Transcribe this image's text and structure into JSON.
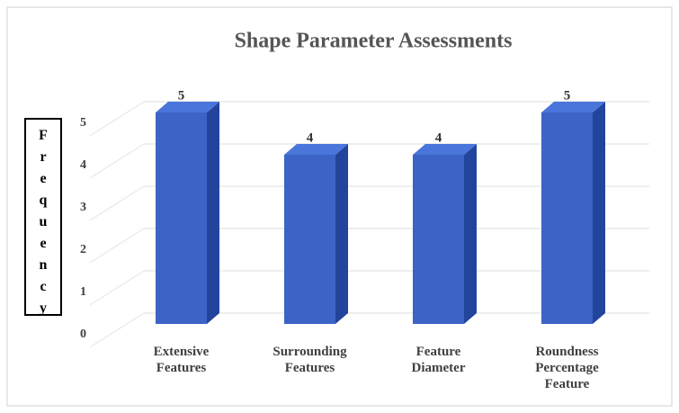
{
  "chart_data": {
    "type": "bar",
    "title": "Shape Parameter Assessments",
    "y_label": "Frequency",
    "categories": [
      "Extensive Features",
      "Surrounding Features",
      "Feature Diameter",
      "Roundness Percentage Feature"
    ],
    "values": [
      5,
      4,
      4,
      5
    ],
    "color": "#3b64c6",
    "ylim": [
      0,
      5
    ],
    "yticks": [
      0,
      1,
      2,
      3,
      4,
      5
    ],
    "grid": true
  }
}
